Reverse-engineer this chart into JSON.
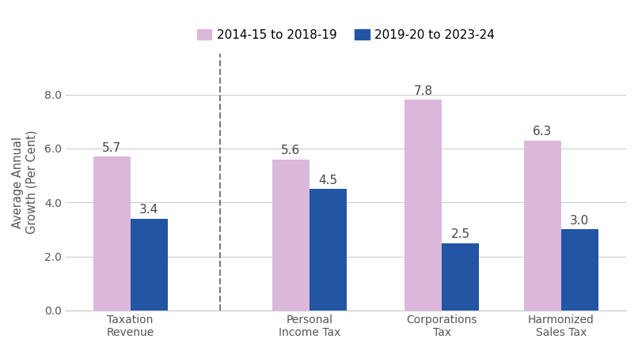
{
  "categories": [
    "Taxation\nRevenue",
    "Personal\nIncome Tax",
    "Corporations\nTax",
    "Harmonized\nSales Tax"
  ],
  "series1_label": "2014-15 to 2018-19",
  "series2_label": "2019-20 to 2023-24",
  "series1_values": [
    5.7,
    5.6,
    7.8,
    6.3
  ],
  "series2_values": [
    3.4,
    4.5,
    2.5,
    3.0
  ],
  "series1_color": "#dbb8db",
  "series2_color": "#2255a4",
  "bar_width": 0.28,
  "ylabel": "Average Annual\nGrowth (Per Cent)",
  "ylim": [
    0,
    9.5
  ],
  "yticks": [
    0.0,
    2.0,
    4.0,
    6.0,
    8.0
  ],
  "dashed_line_x": 0.5,
  "label_fontsize": 11,
  "tick_fontsize": 10,
  "ylabel_fontsize": 10.5,
  "legend_fontsize": 11,
  "background_color": "#ffffff",
  "axis_color": "#cccccc",
  "x_positions": [
    0.0,
    1.35,
    2.35,
    3.25
  ]
}
